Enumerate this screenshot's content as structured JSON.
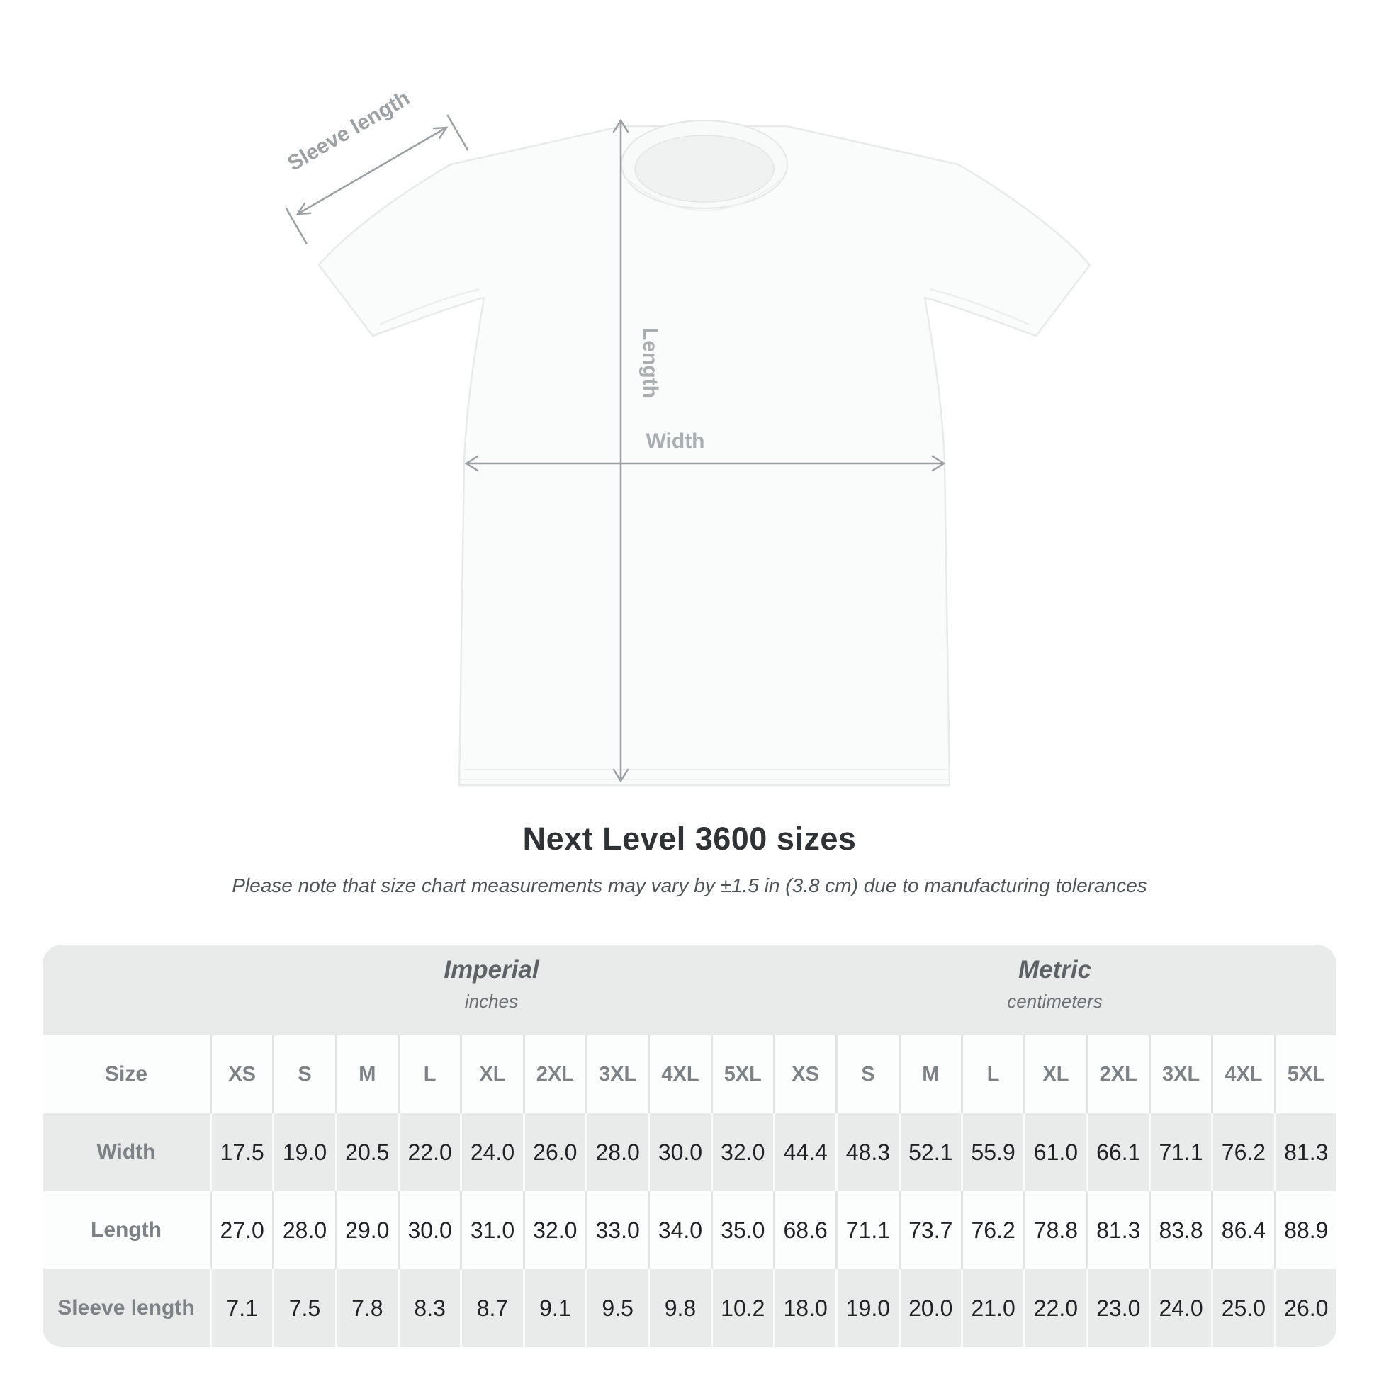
{
  "heading": {
    "title": "Next Level 3600 sizes",
    "subtitle": "Please note that size chart measurements may vary by ±1.5 in (3.8 cm) due to manufacturing tolerances"
  },
  "diagram": {
    "sleeve_label": "Sleeve length",
    "length_label": "Length",
    "width_label": "Width",
    "annotation_color": "#9aa0a3"
  },
  "size_chart": {
    "groups": [
      {
        "label": "Imperial",
        "unit": "inches"
      },
      {
        "label": "Metric",
        "unit": "centimeters"
      }
    ],
    "corner_label": "Size",
    "sizes": [
      "XS",
      "S",
      "M",
      "L",
      "XL",
      "2XL",
      "3XL",
      "4XL",
      "5XL"
    ],
    "rows": [
      {
        "label": "Width",
        "imperial": [
          "17.5",
          "19.0",
          "20.5",
          "22.0",
          "24.0",
          "26.0",
          "28.0",
          "30.0",
          "32.0"
        ],
        "metric": [
          "44.4",
          "48.3",
          "52.1",
          "55.9",
          "61.0",
          "66.1",
          "71.1",
          "76.2",
          "81.3"
        ]
      },
      {
        "label": "Length",
        "imperial": [
          "27.0",
          "28.0",
          "29.0",
          "30.0",
          "31.0",
          "32.0",
          "33.0",
          "34.0",
          "35.0"
        ],
        "metric": [
          "68.6",
          "71.1",
          "73.7",
          "76.2",
          "78.8",
          "81.3",
          "83.8",
          "86.4",
          "88.9"
        ]
      },
      {
        "label": "Sleeve length",
        "imperial": [
          "7.1",
          "7.5",
          "7.8",
          "8.3",
          "8.7",
          "9.1",
          "9.5",
          "9.8",
          "10.2"
        ],
        "metric": [
          "18.0",
          "19.0",
          "20.0",
          "21.0",
          "22.0",
          "23.0",
          "24.0",
          "25.0",
          "26.0"
        ]
      }
    ]
  },
  "colors": {
    "table_bg": "#e9ebeb",
    "row_white": "#fcfdfd",
    "label_text": "#7c8286",
    "value_text": "#1f2326",
    "title_text": "#2f3336",
    "subtitle_text": "#4e5457"
  }
}
